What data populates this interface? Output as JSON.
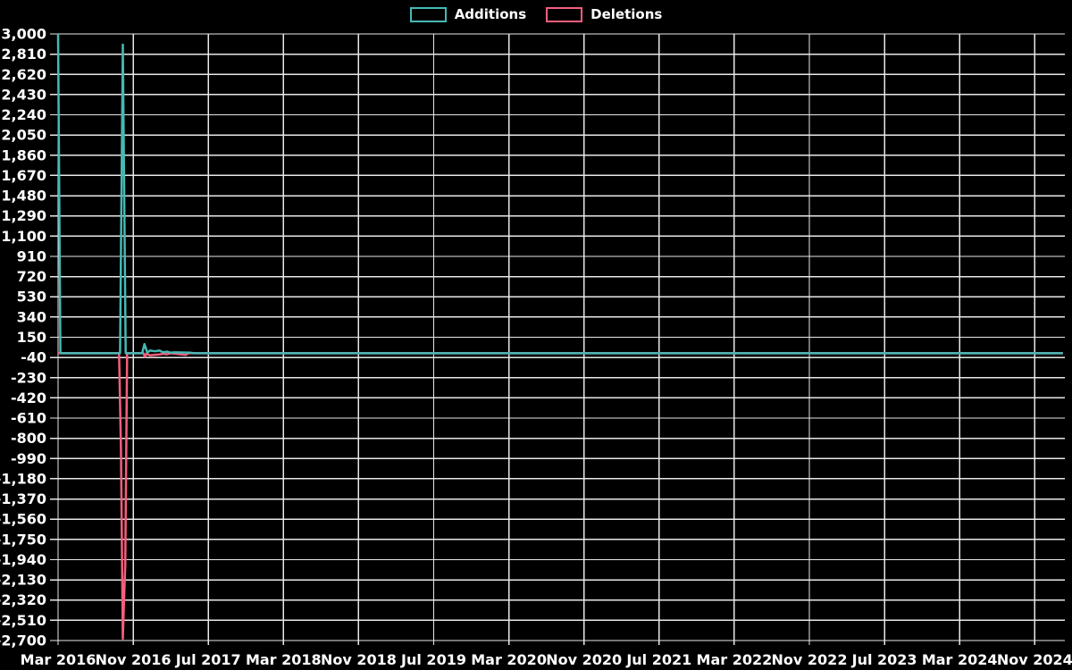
{
  "chart_data": {
    "type": "line",
    "title": "",
    "background_color": "#000000",
    "grid": true,
    "grid_color": "#e8e8e8",
    "text_color": "#ffffff",
    "legend_position": "top-center",
    "points_format": "[months_since_first_tick, value]",
    "x_axis": {
      "tick_labels": [
        "Mar 2016",
        "Nov 2016",
        "Jul 2017",
        "Mar 2018",
        "Nov 2018",
        "Jul 2019",
        "Mar 2020",
        "Nov 2020",
        "Jul 2021",
        "Mar 2022",
        "Nov 2022",
        "Jul 2023",
        "Mar 2024",
        "Nov 2024"
      ],
      "months_per_tick": 8,
      "data_end_month_offset": 107
    },
    "y_axis": {
      "max": 3000,
      "min": -2700,
      "step": -190,
      "tick_labels": [
        "3,000",
        "2,810",
        "2,620",
        "2,430",
        "2,240",
        "2,050",
        "1,860",
        "1,670",
        "1,480",
        "1,290",
        "1,100",
        "910",
        "720",
        "530",
        "340",
        "150",
        "-40",
        "-230",
        "-420",
        "-610",
        "-800",
        "-990",
        "-1,180",
        "-1,370",
        "-1,560",
        "-1,750",
        "-1,940",
        "-2,130",
        "-2,320",
        "-2,510",
        "-2,700"
      ]
    },
    "series": [
      {
        "name": "Additions",
        "color": "#46b9b4",
        "points": [
          [
            0,
            3000
          ],
          [
            0.25,
            0
          ],
          [
            6.6,
            0
          ],
          [
            6.9,
            2900
          ],
          [
            7.2,
            0
          ],
          [
            8.95,
            0
          ],
          [
            9.2,
            85
          ],
          [
            9.5,
            5
          ],
          [
            9.8,
            25
          ],
          [
            10.3,
            18
          ],
          [
            10.8,
            25
          ],
          [
            11.2,
            8
          ],
          [
            11.6,
            15
          ],
          [
            12.0,
            5
          ],
          [
            12.4,
            8
          ],
          [
            14.1,
            5
          ],
          [
            14.5,
            0
          ],
          [
            107,
            0
          ]
        ]
      },
      {
        "name": "Deletions",
        "color": "#f55f7d",
        "points": [
          [
            0,
            0
          ],
          [
            6.5,
            0
          ],
          [
            6.7,
            -900
          ],
          [
            6.9,
            -2683
          ],
          [
            7.05,
            -2250
          ],
          [
            7.15,
            -2000
          ],
          [
            7.35,
            0
          ],
          [
            9.1,
            0
          ],
          [
            9.25,
            -35
          ],
          [
            9.4,
            -5
          ],
          [
            9.8,
            -20
          ],
          [
            10.3,
            -15
          ],
          [
            10.8,
            -12
          ],
          [
            11.2,
            -5
          ],
          [
            11.6,
            -10
          ],
          [
            12.0,
            0
          ],
          [
            13.6,
            -15
          ],
          [
            13.9,
            0
          ],
          [
            107,
            0
          ]
        ]
      }
    ]
  }
}
